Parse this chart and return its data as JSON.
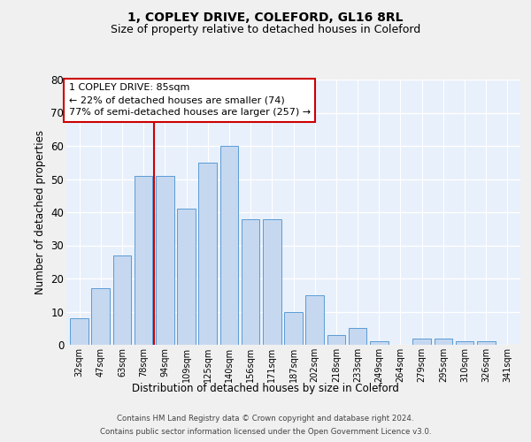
{
  "title1": "1, COPLEY DRIVE, COLEFORD, GL16 8RL",
  "title2": "Size of property relative to detached houses in Coleford",
  "xlabel": "Distribution of detached houses by size in Coleford",
  "ylabel": "Number of detached properties",
  "categories": [
    "32sqm",
    "47sqm",
    "63sqm",
    "78sqm",
    "94sqm",
    "109sqm",
    "125sqm",
    "140sqm",
    "156sqm",
    "171sqm",
    "187sqm",
    "202sqm",
    "218sqm",
    "233sqm",
    "249sqm",
    "264sqm",
    "279sqm",
    "295sqm",
    "310sqm",
    "326sqm",
    "341sqm"
  ],
  "values": [
    8,
    17,
    27,
    51,
    51,
    41,
    55,
    60,
    38,
    38,
    10,
    15,
    3,
    5,
    1,
    0,
    2,
    2,
    1,
    1,
    0
  ],
  "bar_color": "#c5d8f0",
  "bar_edge_color": "#5b9bd5",
  "ylim": [
    0,
    80
  ],
  "yticks": [
    0,
    10,
    20,
    30,
    40,
    50,
    60,
    70,
    80
  ],
  "property_line_x": 3.5,
  "annotation_title": "1 COPLEY DRIVE: 85sqm",
  "annotation_line1": "← 22% of detached houses are smaller (74)",
  "annotation_line2": "77% of semi-detached houses are larger (257) →",
  "footer1": "Contains HM Land Registry data © Crown copyright and database right 2024.",
  "footer2": "Contains public sector information licensed under the Open Government Licence v3.0.",
  "background_color": "#e8f0fb",
  "grid_color": "#ffffff",
  "fig_background_color": "#f0f0f0",
  "annotation_box_color": "#ffffff",
  "annotation_box_edge": "#cc0000",
  "property_line_color": "#cc0000"
}
